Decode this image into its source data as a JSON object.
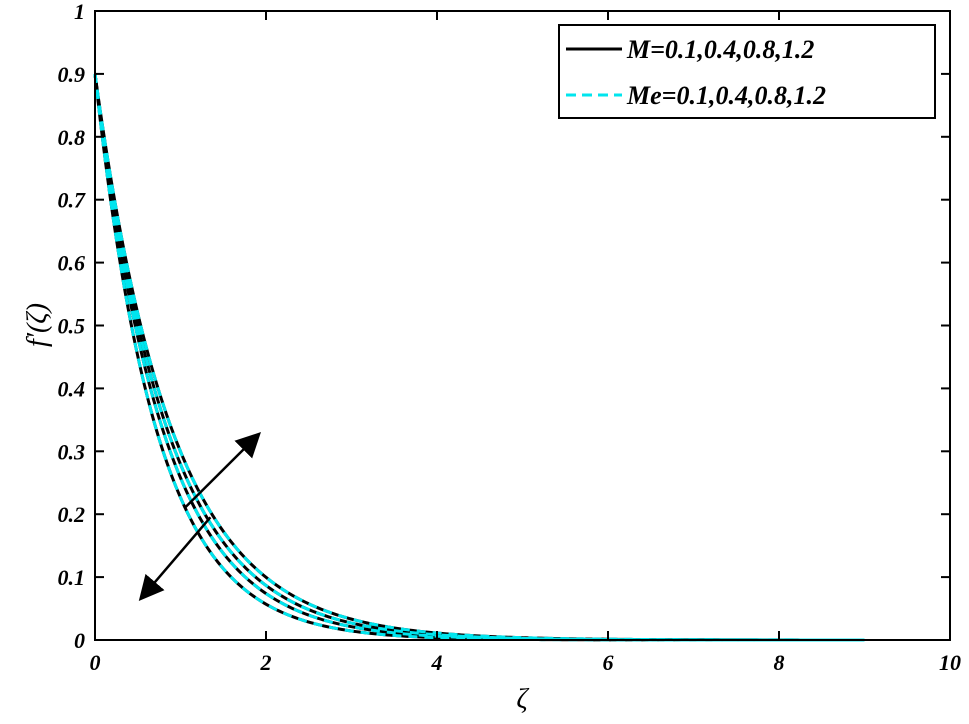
{
  "chart_data": {
    "type": "line",
    "xlabel": "ζ",
    "ylabel": "f′(ζ)",
    "xlim": [
      0,
      10
    ],
    "ylim": [
      0,
      1
    ],
    "x_ticks": [
      0,
      2,
      4,
      6,
      8,
      10
    ],
    "y_ticks": [
      0,
      0.1,
      0.2,
      0.3,
      0.4,
      0.5,
      0.6,
      0.7,
      0.8,
      0.9,
      1
    ],
    "x_tick_labels": [
      "0",
      "2",
      "4",
      "6",
      "8",
      "10"
    ],
    "y_tick_labels": [
      "0",
      "0.1",
      "0.2",
      "0.3",
      "0.4",
      "0.5",
      "0.6",
      "0.7",
      "0.8",
      "0.9",
      "1"
    ],
    "grid": false,
    "legend_position": "top-right",
    "legend": [
      {
        "label": "M=0.1,0.4,0.8,1.2",
        "color": "#000000",
        "style": "solid"
      },
      {
        "label": "Me=0.1,0.4,0.8,1.2",
        "color": "#00e5ee",
        "style": "dashed"
      }
    ],
    "x_range": [
      0,
      9
    ],
    "series": [
      {
        "group": "M",
        "param": 0.1,
        "color": "#000000",
        "style": "solid",
        "y0": 0.9,
        "decay_rate": 1.1
      },
      {
        "group": "M",
        "param": 0.4,
        "color": "#000000",
        "style": "solid",
        "y0": 0.9,
        "decay_rate": 1.17
      },
      {
        "group": "M",
        "param": 0.8,
        "color": "#000000",
        "style": "solid",
        "y0": 0.9,
        "decay_rate": 1.25
      },
      {
        "group": "M",
        "param": 1.2,
        "color": "#000000",
        "style": "solid",
        "y0": 0.9,
        "decay_rate": 1.38
      },
      {
        "group": "Me",
        "param": 0.1,
        "color": "#00e5ee",
        "style": "dashed",
        "y0": 0.9,
        "decay_rate": 1.38
      },
      {
        "group": "Me",
        "param": 0.4,
        "color": "#00e5ee",
        "style": "dashed",
        "y0": 0.9,
        "decay_rate": 1.25
      },
      {
        "group": "Me",
        "param": 0.8,
        "color": "#00e5ee",
        "style": "dashed",
        "y0": 0.9,
        "decay_rate": 1.17
      },
      {
        "group": "Me",
        "param": 1.2,
        "color": "#00e5ee",
        "style": "dashed",
        "y0": 0.9,
        "decay_rate": 1.1
      }
    ],
    "annotations": [
      {
        "type": "arrow",
        "from": [
          1.05,
          0.21
        ],
        "to": [
          1.9,
          0.325
        ]
      },
      {
        "type": "arrow",
        "from": [
          1.35,
          0.195
        ],
        "to": [
          0.55,
          0.068
        ]
      }
    ]
  }
}
